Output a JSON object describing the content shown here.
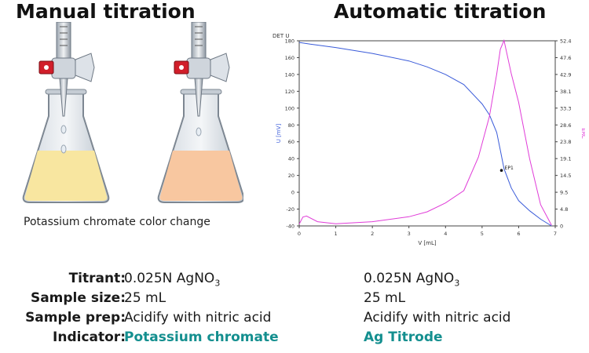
{
  "manual": {
    "title": "Manual titration",
    "caption": "Potassium chromate color change",
    "flask_colors": [
      "#f8e6a0",
      "#f8c7a0"
    ]
  },
  "automatic": {
    "title": "Automatic titration"
  },
  "chart_data": {
    "type": "line",
    "device_label": "DET U",
    "xlabel": "V [mL]",
    "ylabel": "U [mV]",
    "ylabel_right": "ERC",
    "xlim": [
      0,
      7
    ],
    "ylim": [
      -40,
      180
    ],
    "xticks": [
      "0",
      "1",
      "2",
      "3",
      "4",
      "5",
      "6",
      "7"
    ],
    "yticks": [
      "-40",
      "-20",
      "0",
      "20",
      "40",
      "60",
      "80",
      "100",
      "120",
      "140",
      "160",
      "180"
    ],
    "yticks_right": [
      "0",
      "4.8",
      "9.5",
      "14.5",
      "19.1",
      "23.8",
      "28.6",
      "33.3",
      "38.1",
      "42.9",
      "47.6",
      "52.4"
    ],
    "ylim_right": [
      0,
      52.4
    ],
    "grid": false,
    "endpoint_label": "EP1",
    "endpoint": [
      5.53,
      26
    ],
    "series": [
      {
        "color": "#3a5bd9",
        "axis": "left",
        "x": [
          0,
          0.3,
          1,
          2,
          3,
          3.5,
          4,
          4.5,
          5,
          5.2,
          5.4,
          5.5,
          5.6,
          5.8,
          6,
          6.3,
          6.6,
          6.9
        ],
        "y": [
          178,
          176,
          172,
          165,
          156,
          149,
          140,
          128,
          105,
          92,
          71,
          50,
          28,
          5,
          -10,
          -22,
          -32,
          -40
        ]
      },
      {
        "color": "#e03cd8",
        "axis": "right",
        "x": [
          0,
          0.1,
          0.2,
          0.5,
          1,
          2,
          3,
          3.5,
          4,
          4.5,
          4.9,
          5.2,
          5.4,
          5.5,
          5.6,
          5.8,
          6,
          6.3,
          6.6,
          6.9
        ],
        "y": [
          0.5,
          2.5,
          2.8,
          1.2,
          0.6,
          1.2,
          2.6,
          4,
          6.5,
          10,
          19.5,
          31,
          43,
          50,
          52.5,
          43,
          35,
          19,
          6,
          0.2
        ]
      }
    ]
  },
  "table": {
    "rows": [
      {
        "label": "Titrant:",
        "manual_pre": "0.025N AgNO",
        "manual_sub": "3",
        "auto_pre": "0.025N AgNO",
        "auto_sub": "3"
      },
      {
        "label": "Sample size:",
        "manual": "25 mL",
        "auto": "25 mL"
      },
      {
        "label": "Sample prep:",
        "manual": "Acidify with nitric acid",
        "auto": "Acidify with nitric acid"
      },
      {
        "label": "Indicator:",
        "manual": "Potassium chromate",
        "auto": "Ag Titrode"
      }
    ],
    "highlight_color": "#148f8f"
  }
}
